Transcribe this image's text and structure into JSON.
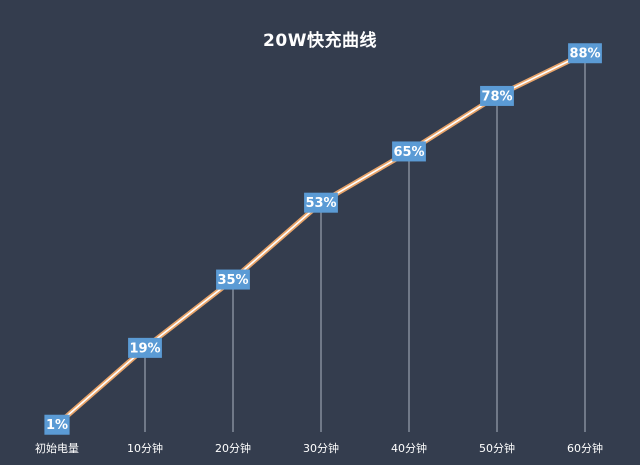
{
  "chart_data": {
    "type": "line",
    "title": "20W快充曲线",
    "categories": [
      "初始电量",
      "10分钟",
      "20分钟",
      "30分钟",
      "40分钟",
      "50分钟",
      "60分钟"
    ],
    "series": [
      {
        "values": [
          1,
          19,
          35,
          53,
          65,
          78,
          88
        ]
      }
    ],
    "data_labels": [
      "1%",
      "19%",
      "35%",
      "53%",
      "65%",
      "78%",
      "88%"
    ],
    "ylim": [
      0,
      100
    ],
    "grid": false,
    "legend": "none",
    "colors": {
      "background": "#343d4e",
      "line_outer": "#e8a46a",
      "line_inner": "#ffffff",
      "label_box": "#5b9bd5",
      "drop_line": "#c9d3e0",
      "text": "#ffffff"
    }
  }
}
